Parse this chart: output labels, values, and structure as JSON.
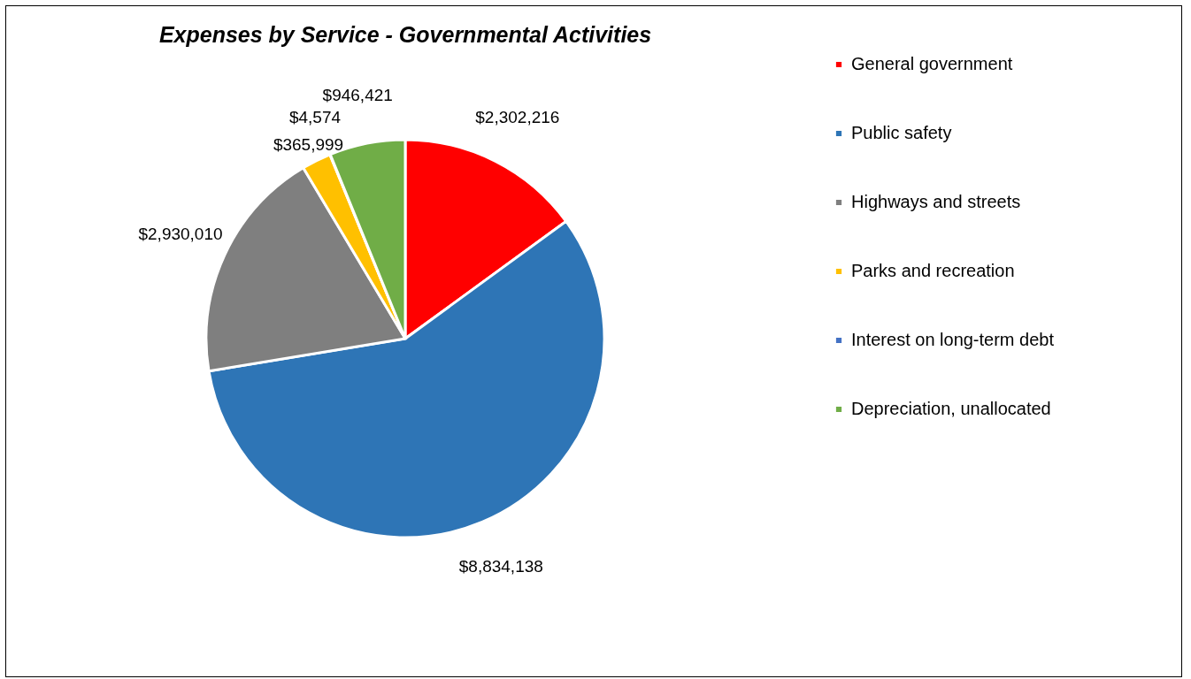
{
  "chart_data": {
    "type": "pie",
    "title": "Expenses by Service - Governmental Activities",
    "categories": [
      "General government",
      "Public safety",
      "Highways and streets",
      "Parks and recreation",
      "Interest on long-term debt",
      "Depreciation, unallocated"
    ],
    "values": [
      2302216,
      8834138,
      2930010,
      365999,
      4574,
      946421
    ],
    "value_labels": [
      "$2,302,216",
      "$8,834,138",
      "$2,930,010",
      "$365,999",
      "$4,574",
      "$946,421"
    ],
    "colors": [
      "#ff0000",
      "#2e75b6",
      "#7f7f7f",
      "#ffc000",
      "#4472c4",
      "#70ad47"
    ],
    "legend": "right"
  }
}
